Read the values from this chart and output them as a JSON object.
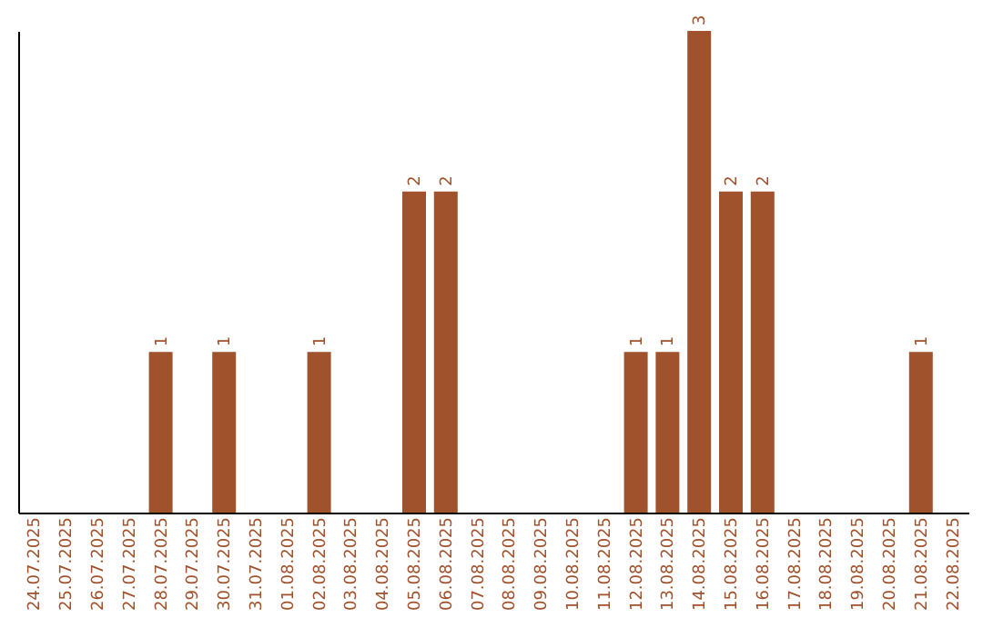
{
  "chart_data": {
    "type": "bar",
    "categories": [
      "24.07.2025",
      "25.07.2025",
      "26.07.2025",
      "27.07.2025",
      "28.07.2025",
      "29.07.2025",
      "30.07.2025",
      "31.07.2025",
      "01.08.2025",
      "02.08.2025",
      "03.08.2025",
      "04.08.2025",
      "05.08.2025",
      "06.08.2025",
      "07.08.2025",
      "08.08.2025",
      "09.08.2025",
      "10.08.2025",
      "11.08.2025",
      "12.08.2025",
      "13.08.2025",
      "14.08.2025",
      "15.08.2025",
      "16.08.2025",
      "17.08.2025",
      "18.08.2025",
      "19.08.2025",
      "20.08.2025",
      "21.08.2025",
      "22.08.2025"
    ],
    "values": [
      0,
      0,
      0,
      0,
      1,
      0,
      1,
      0,
      0,
      1,
      0,
      0,
      2,
      2,
      0,
      0,
      0,
      0,
      0,
      1,
      1,
      3,
      2,
      2,
      0,
      0,
      0,
      0,
      1,
      0
    ],
    "value_labels": [
      null,
      null,
      null,
      null,
      "1",
      null,
      "1",
      null,
      null,
      "1",
      null,
      null,
      "2",
      "2",
      null,
      null,
      null,
      null,
      null,
      "1",
      "1",
      "3",
      "2",
      "2",
      null,
      null,
      null,
      null,
      "1",
      null
    ],
    "color": "#a0522d",
    "ylim": [
      0,
      3
    ],
    "tick_labels": "x",
    "grid": false
  }
}
